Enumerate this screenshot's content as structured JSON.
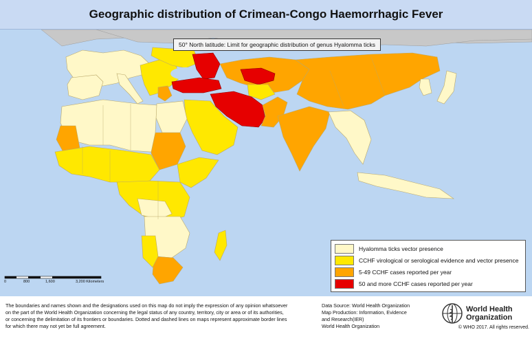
{
  "title": "Geographic distribution of Crimean-Congo Haemorrhagic Fever",
  "map": {
    "latitude_label": "50° North latitude: Limit for geographic distribution of genus Hyalomma ticks",
    "colors": {
      "ocean": "#bcd6f2",
      "no_data": "#ffffff",
      "north_band": "#c8c8c8",
      "hyalomma_presence": "#fff8c8",
      "evidence": "#ffe800",
      "cases_5_49": "#ffa500",
      "cases_50_plus": "#e60000"
    }
  },
  "legend": [
    {
      "label": "Hyalomma ticks vector presence",
      "color": "#fff8c8"
    },
    {
      "label": "CCHF virological or serological evidence and vector presence",
      "color": "#ffe800"
    },
    {
      "label": "5-49 CCHF cases reported per year",
      "color": "#ffa500"
    },
    {
      "label": "50 and more CCHF cases reported per year",
      "color": "#e60000"
    }
  ],
  "scale": {
    "ticks": [
      "0",
      "800",
      "1,600",
      "3,200 Kilometers"
    ]
  },
  "footer": {
    "disclaimer": "The boundaries and names shown and the designations used on this map do not imply the expression of any opinion whatsoever\non the part of the World Health Organization concerning the legal status of any country, territory, city or area or of its authorities,\nor concerning the delimitation of its frontiers or boundaries. Dotted and dashed lines on maps represent approximate border lines\nfor which there may not yet be full agreement.",
    "credits": [
      "Data Source: World Health Organization",
      "Map Production: Information, Evidence",
      "and Research(IER)",
      "World Health Organization"
    ],
    "who_name": "World Health\nOrganization",
    "copyright": "© WHO 2017. All rights reserved."
  }
}
